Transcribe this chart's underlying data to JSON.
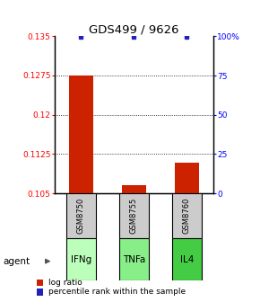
{
  "title": "GDS499 / 9626",
  "samples": [
    "GSM8750",
    "GSM8755",
    "GSM8760"
  ],
  "agents": [
    "IFNg",
    "TNFa",
    "IL4"
  ],
  "log_ratios": [
    0.1275,
    0.1065,
    0.1108
  ],
  "baseline": 0.105,
  "ylim_left": [
    0.105,
    0.135
  ],
  "ylim_right": [
    0,
    100
  ],
  "yticks_left": [
    0.105,
    0.1125,
    0.12,
    0.1275,
    0.135
  ],
  "ytick_labels_left": [
    "0.105",
    "0.1125",
    "0.12",
    "0.1275",
    "0.135"
  ],
  "yticks_right": [
    0,
    25,
    50,
    75,
    100
  ],
  "ytick_labels_right": [
    "0",
    "25",
    "50",
    "75",
    "100%"
  ],
  "bar_color": "#cc2200",
  "dot_color": "#2222bb",
  "dot_y_value": 99.5,
  "agent_colors": [
    "#bbffbb",
    "#88ee88",
    "#44cc44"
  ],
  "grid_ticks": [
    0.1125,
    0.12,
    0.1275
  ],
  "x_positions": [
    0.5,
    1.5,
    2.5
  ],
  "bar_width": 0.45,
  "xlim": [
    0,
    3
  ]
}
